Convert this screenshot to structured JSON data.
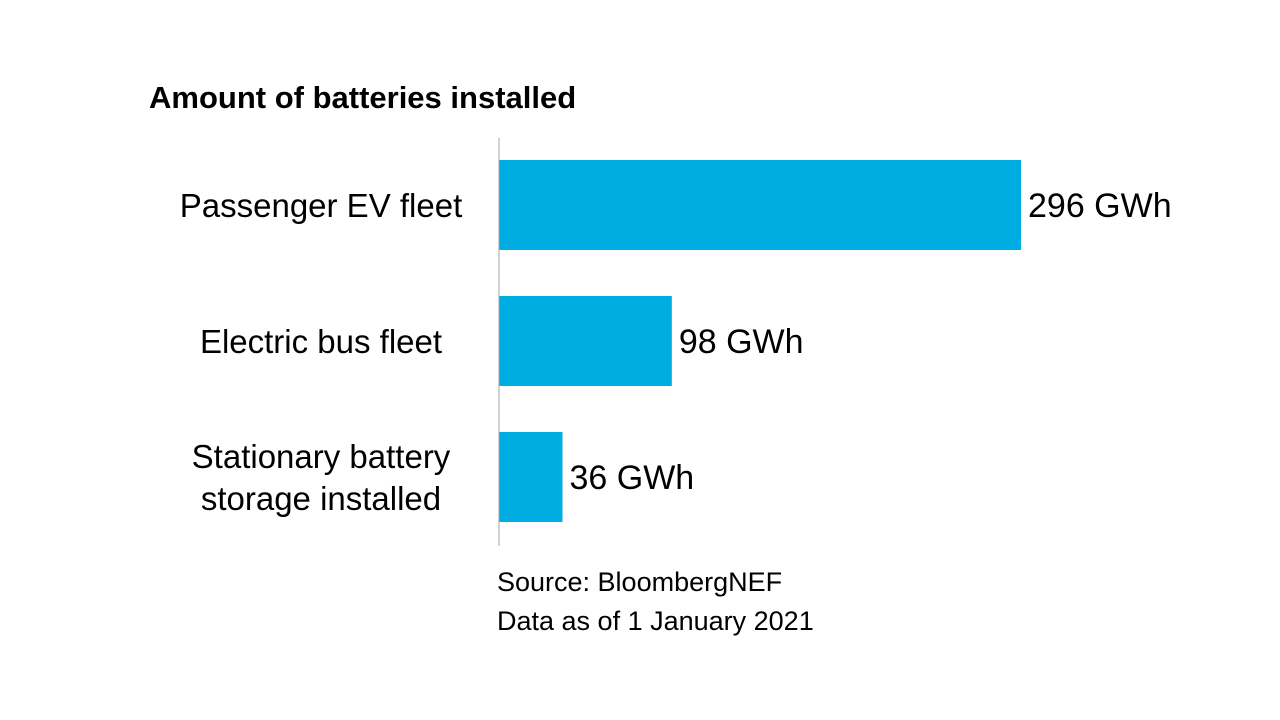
{
  "chart_data": {
    "type": "bar",
    "orientation": "horizontal",
    "title": "Amount of batteries installed",
    "categories": [
      [
        "Passenger EV fleet"
      ],
      [
        "Electric bus fleet"
      ],
      [
        "Stationary battery",
        "storage installed"
      ]
    ],
    "values": [
      296,
      98,
      36
    ],
    "value_labels": [
      "296 GWh",
      "98 GWh",
      "36 GWh"
    ],
    "unit": "GWh",
    "xlim": [
      0,
      296
    ],
    "grid": false,
    "legend": "none",
    "bar_color": "#00ADE3",
    "axis_color": "#A6A6A6"
  },
  "footer": {
    "source": "Source: BloombergNEF",
    "date": "Data as of 1 January 2021"
  }
}
